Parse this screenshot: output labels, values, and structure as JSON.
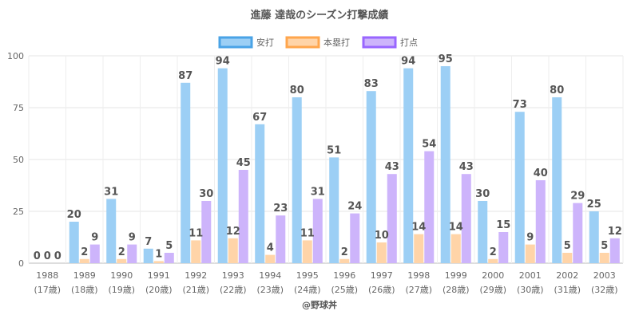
{
  "chart_data": {
    "type": "bar",
    "title": "進藤 達哉のシーズン打撃成績",
    "categories": [
      "1988",
      "1989",
      "1990",
      "1991",
      "1992",
      "1993",
      "1994",
      "1995",
      "1996",
      "1997",
      "1998",
      "1999",
      "2000",
      "2001",
      "2002",
      "2003"
    ],
    "sublabels": [
      "(17歳)",
      "(18歳)",
      "(19歳)",
      "(20歳)",
      "(21歳)",
      "(22歳)",
      "(23歳)",
      "(24歳)",
      "(25歳)",
      "(26歳)",
      "(27歳)",
      "(28歳)",
      "(29歳)",
      "(30歳)",
      "(31歳)",
      "(32歳)"
    ],
    "series": [
      {
        "name": "安打",
        "color": "#9ccff5",
        "border": "#4aa3e6",
        "values": [
          0,
          20,
          31,
          7,
          87,
          94,
          67,
          80,
          51,
          83,
          94,
          95,
          30,
          73,
          80,
          25
        ]
      },
      {
        "name": "本塁打",
        "color": "#ffd4a8",
        "border": "#ffa64d",
        "values": [
          0,
          2,
          2,
          1,
          11,
          12,
          4,
          11,
          2,
          10,
          14,
          14,
          2,
          9,
          5,
          5
        ]
      },
      {
        "name": "打点",
        "color": "#cdb4fb",
        "border": "#9966ff",
        "values": [
          0,
          9,
          9,
          5,
          30,
          45,
          23,
          31,
          24,
          43,
          54,
          43,
          15,
          40,
          29,
          12
        ]
      }
    ],
    "ylim": [
      0,
      100
    ],
    "yticks": [
      0,
      25,
      50,
      75,
      100
    ],
    "grid": true,
    "legend_position": "top",
    "credit": "@野球丼"
  }
}
